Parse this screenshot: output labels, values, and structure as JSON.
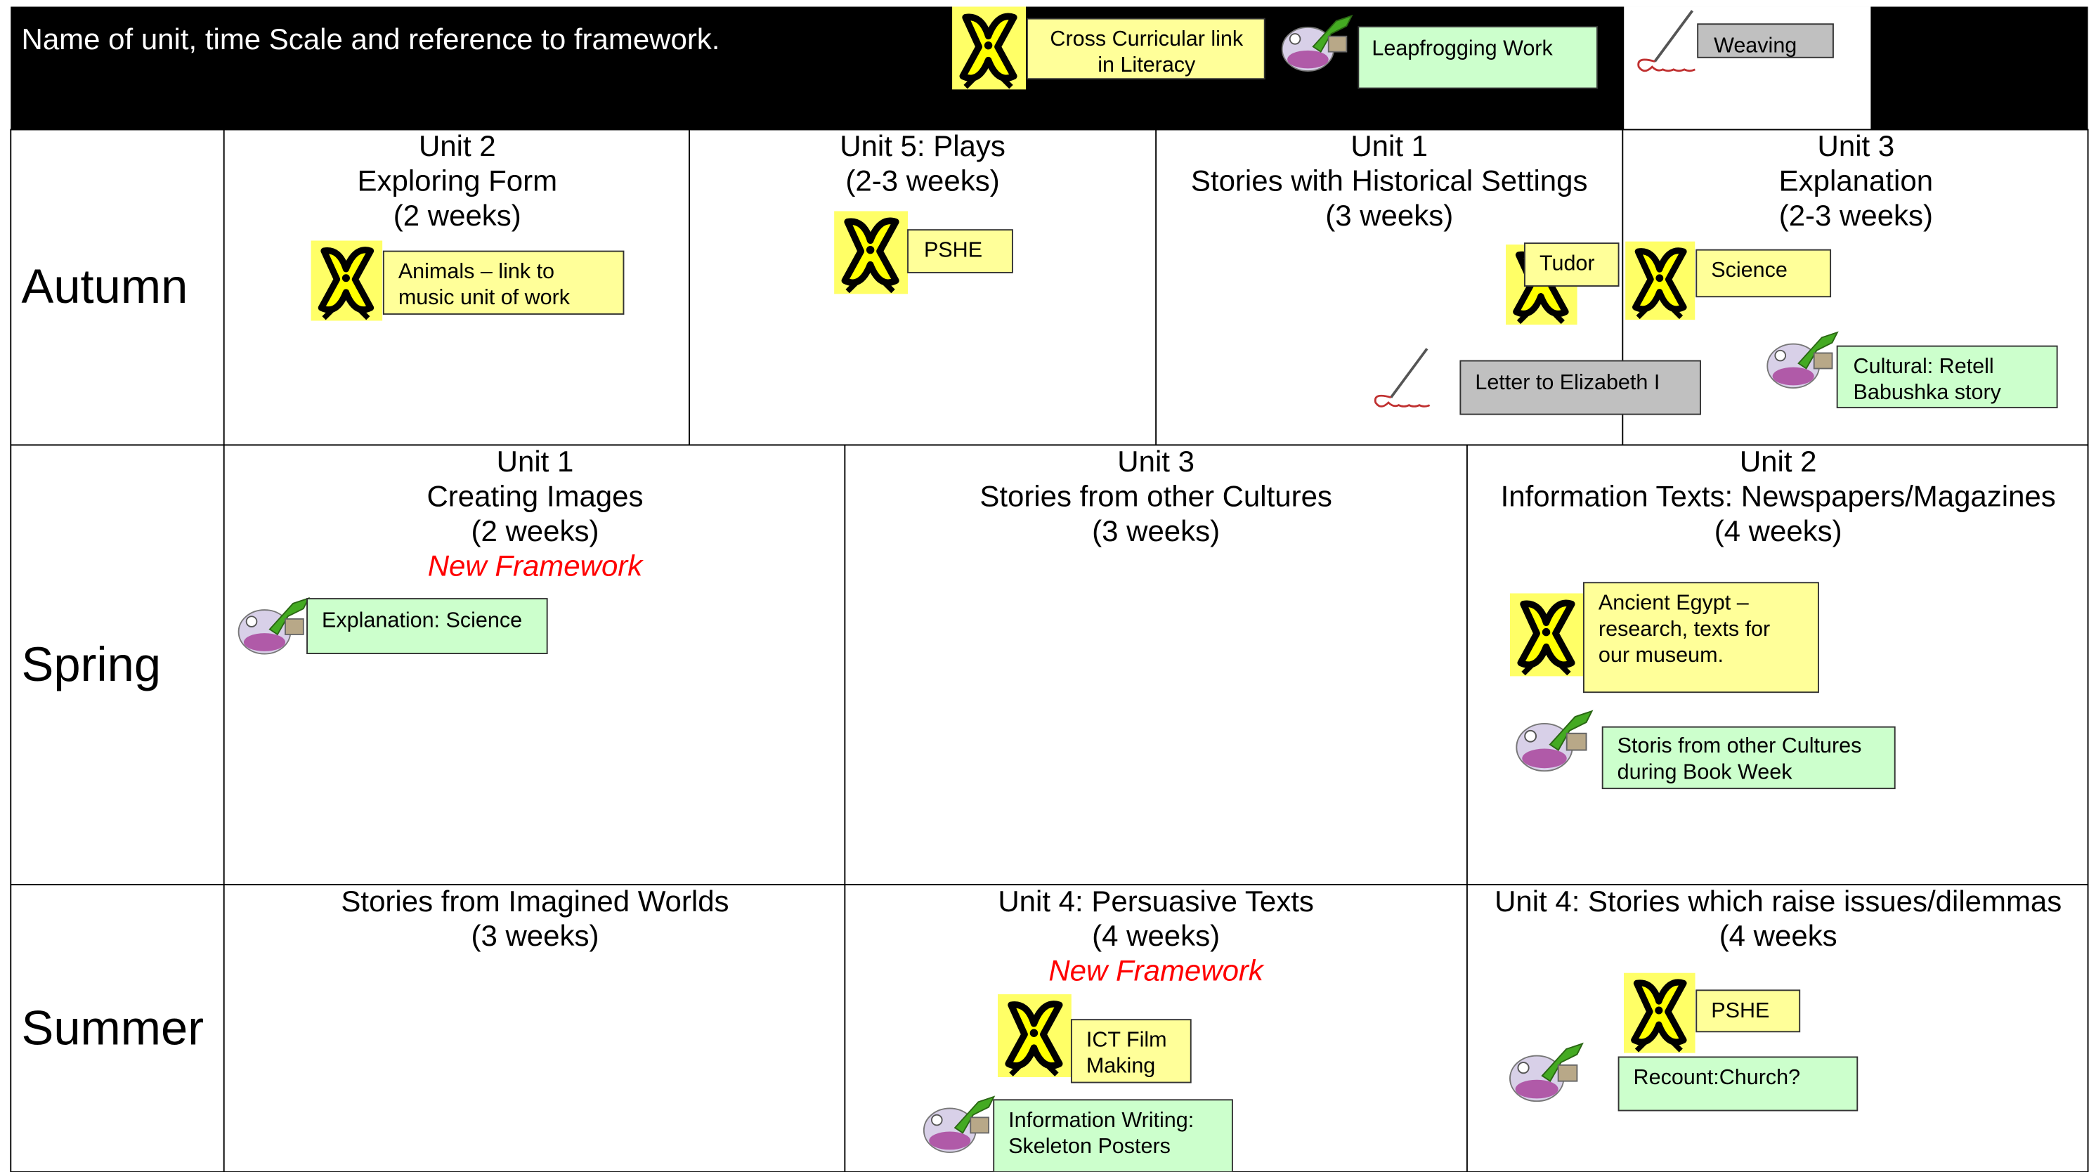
{
  "header": {
    "title": "Name of unit, time Scale and reference to framework.",
    "legend": {
      "cross_curricular": [
        "Cross Curricular link",
        "in Literacy"
      ],
      "leapfrogging": [
        "Leapfrogging Work"
      ],
      "weaving": [
        "Weaving"
      ]
    }
  },
  "rows": [
    {
      "season": "Autumn",
      "units": [
        {
          "title_lines": [
            "Unit 2",
            "Exploring Form",
            "(2 weeks)"
          ],
          "notes": [
            {
              "lines": [
                "Animals – link to",
                "music unit of work"
              ]
            }
          ]
        },
        {
          "title_lines": [
            "Unit 5: Plays",
            "(2-3 weeks)"
          ],
          "notes": [
            {
              "lines": [
                "PSHE"
              ]
            }
          ]
        },
        {
          "title_lines": [
            "Unit 1",
            "Stories with Historical Settings",
            "(3 weeks)"
          ],
          "notes": [
            {
              "lines": [
                "Tudor"
              ]
            },
            {
              "lines": [
                "Letter to Elizabeth I"
              ]
            }
          ]
        },
        {
          "title_lines": [
            "Unit 3",
            "Explanation",
            "(2-3 weeks)"
          ],
          "notes": [
            {
              "lines": [
                "Science"
              ]
            },
            {
              "lines": [
                "Cultural: Retell",
                "Babushka story"
              ]
            }
          ]
        }
      ]
    },
    {
      "season": "Spring",
      "units": [
        {
          "title_lines": [
            "Unit 1",
            "Creating Images",
            "(2 weeks)"
          ],
          "framework": "New Framework",
          "notes": [
            {
              "lines": [
                "Explanation: Science"
              ]
            }
          ]
        },
        {
          "title_lines": [
            "Unit 3",
            "Stories from other Cultures",
            "(3 weeks)"
          ],
          "notes": []
        },
        {
          "title_lines": [
            "Unit 2",
            "Information Texts: Newspapers/Magazines",
            "(4 weeks)"
          ],
          "notes": [
            {
              "lines": [
                "Ancient Egypt –",
                "research, texts for",
                "our museum."
              ]
            },
            {
              "lines": [
                "Storis from other Cultures",
                "during Book Week"
              ]
            }
          ]
        }
      ]
    },
    {
      "season": "Summer",
      "units": [
        {
          "title_lines": [
            "Stories from Imagined Worlds",
            "(3 weeks)"
          ],
          "notes": []
        },
        {
          "title_lines": [
            "Unit 4: Persuasive Texts",
            "(4 weeks)"
          ],
          "framework": "New Framework",
          "notes": [
            {
              "lines": [
                "ICT Film",
                "Making"
              ]
            },
            {
              "lines": [
                "Information Writing:",
                "Skeleton Posters"
              ]
            }
          ]
        },
        {
          "title_lines": [
            "Unit 4: Stories which raise issues/dilemmas",
            "(4 weeks"
          ],
          "notes": [
            {
              "lines": [
                "PSHE"
              ]
            },
            {
              "lines": [
                "Recount:Church?"
              ]
            }
          ]
        }
      ]
    }
  ]
}
